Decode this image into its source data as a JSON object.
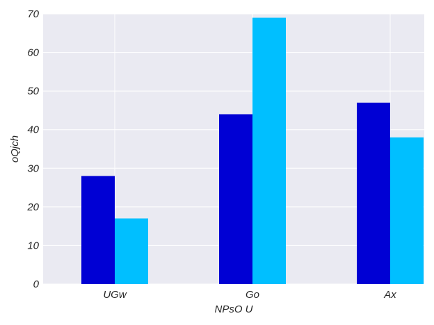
{
  "chart_data": {
    "type": "bar",
    "categories": [
      "UGw",
      "Go",
      "Ax"
    ],
    "series": [
      {
        "values": [
          28,
          44,
          47
        ],
        "color": "#0000d4"
      },
      {
        "values": [
          17,
          69,
          38
        ],
        "color": "#00bfff"
      }
    ],
    "xlabel": "NPsO U",
    "ylabel": "oQjch",
    "ylim": [
      0,
      70
    ],
    "yticks": [
      0,
      10,
      20,
      30,
      40,
      50,
      60,
      70
    ],
    "grid": true,
    "background": "#eaeaf2",
    "grid_color": "#ffffff",
    "legend": false
  }
}
